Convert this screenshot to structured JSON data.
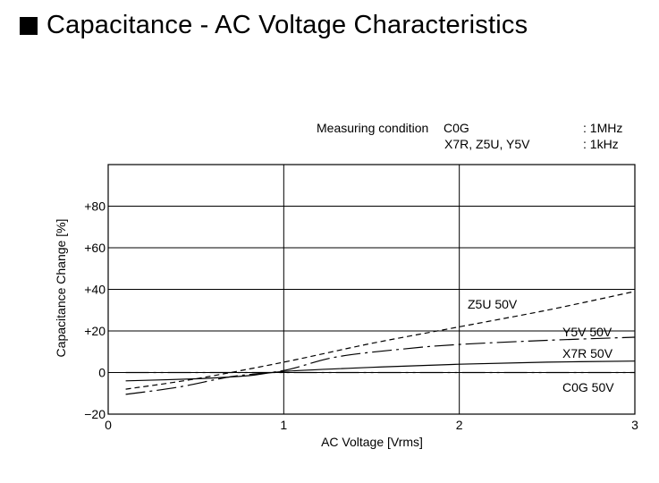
{
  "title": "Capacitance - AC Voltage Characteristics",
  "conditions": {
    "heading": "Measuring condition",
    "rows": [
      {
        "types": "C0G",
        "value": ": 1MHz"
      },
      {
        "types": "X7R, Z5U, Y5V",
        "value": ": 1kHz"
      }
    ]
  },
  "chart_data": {
    "type": "line",
    "xlabel": "AC Voltage [Vrms]",
    "ylabel": "Capacitance Change [%]",
    "xlim": [
      0,
      3
    ],
    "ylim": [
      -20,
      100
    ],
    "x_ticks": [
      0,
      1,
      2,
      3
    ],
    "x_tick_labels": [
      "0",
      "1",
      "2",
      "3"
    ],
    "y_ticks": [
      80,
      60,
      40,
      20,
      0,
      -20
    ],
    "y_tick_labels": [
      "+80",
      "+60",
      "+40",
      "+20",
      "0",
      "−20"
    ],
    "grid": true,
    "series": [
      {
        "name": "Z5U 50V",
        "style": "dashed",
        "x": [
          0.1,
          0.5,
          1.0,
          1.5,
          2.0,
          2.5,
          3.0
        ],
        "y": [
          -8,
          -3,
          5,
          14,
          22,
          30,
          39
        ]
      },
      {
        "name": "Y5V 50V",
        "style": "dash-dot",
        "x": [
          0.1,
          0.4,
          0.7,
          1.0,
          1.3,
          1.7,
          2.0,
          2.5,
          3.0
        ],
        "y": [
          -10.5,
          -7,
          -2,
          1,
          7.5,
          11.5,
          13.5,
          15.5,
          17
        ]
      },
      {
        "name": "X7R 50V",
        "style": "solid",
        "x": [
          0.1,
          0.5,
          0.8,
          1.0,
          1.5,
          2.0,
          2.5,
          3.0
        ],
        "y": [
          -4,
          -3,
          -1.5,
          0.5,
          2.5,
          4,
          5,
          5.5
        ]
      },
      {
        "name": "C0G 50V",
        "style": "dash-dot-dot",
        "x": [
          0.1,
          3.0
        ],
        "y": [
          0,
          0
        ]
      }
    ]
  }
}
